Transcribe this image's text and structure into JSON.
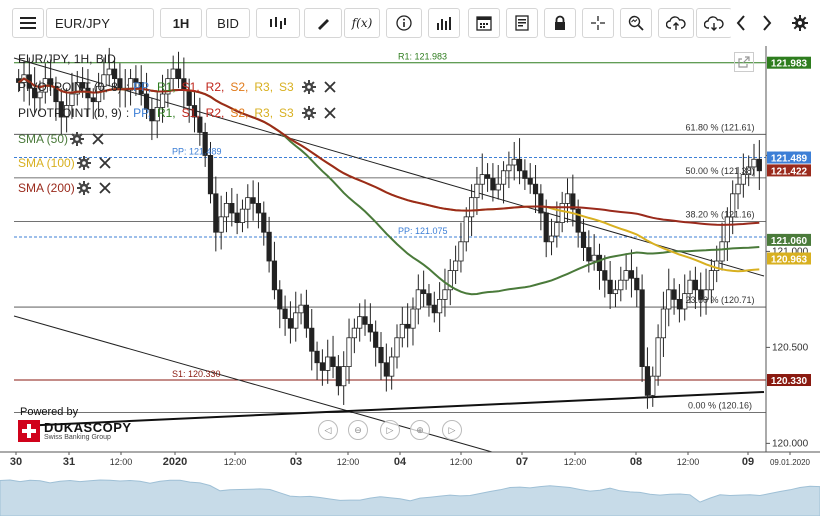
{
  "toolbar": {
    "menu_icon": "hamburger-icon",
    "symbol": "EUR/JPY",
    "timeframe": "1H",
    "price_type": "BID",
    "icons": [
      "candlestick-icon",
      "pencil-icon",
      "function-icon",
      "info-icon",
      "bar-chart-icon",
      "calendar-icon",
      "document-icon",
      "lock-icon",
      "crosshair-icon",
      "zoom-icon",
      "upload-cloud-icon",
      "download-cloud-icon",
      "chevron-left-icon",
      "chevron-right-icon",
      "gear-icon"
    ]
  },
  "chart_header": {
    "title": "EUR/JPY, 1H, BID"
  },
  "indicators": [
    {
      "label": "PIVOTPOINT (0, 8)",
      "levels": [
        "PP",
        "R1",
        "S1",
        "R2",
        "S2",
        "R3",
        "S3"
      ]
    },
    {
      "label": "PIVOTPOINT (0, 9)",
      "levels": [
        "PP",
        "R1",
        "S1",
        "R2",
        "S2",
        "R3",
        "S3"
      ]
    },
    {
      "label": "SMA (50)",
      "color": "#4a7a3a"
    },
    {
      "label": "SMA (100)",
      "color": "#d8b020"
    },
    {
      "label": "SMA (200)",
      "color": "#9a2a1c"
    }
  ],
  "level_colors": {
    "PP": "#3d7fd6",
    "R1": "#2e7d1e",
    "S1": "#c0251b",
    "R2": "#c0251b",
    "S2": "#e07a1a",
    "R3": "#d8b020",
    "S3": "#d8b020"
  },
  "branding": {
    "powered": "Powered by",
    "name": "DUKASCOPY",
    "sub": "Swiss Banking Group"
  },
  "nav_buttons": [
    "◁",
    "⊖",
    "▷",
    "⊕",
    "▷"
  ],
  "chart_data": {
    "type": "candlestick",
    "symbol": "EUR/JPY",
    "timeframe": "1H",
    "ylim": [
      119.955,
      122.07
    ],
    "y_tick_labels": [
      "121.000",
      "120.500",
      "120.000",
      "121.500"
    ],
    "x_tick_labels": [
      "30",
      "31",
      "12:00",
      "2020",
      "12:00",
      "03",
      "12:00",
      "04",
      "12:00",
      "07",
      "12:00",
      "08",
      "12:00",
      "09",
      "09.01.2020"
    ],
    "horizontal_levels": [
      {
        "label": "R1: 121.983",
        "value": 121.983,
        "color": "#2e7d1e"
      },
      {
        "label": "PP: 121.489",
        "value": 121.489,
        "color": "#3d7fd6"
      },
      {
        "label": "PP: 121.075",
        "value": 121.075,
        "color": "#3d7fd6"
      },
      {
        "label": "S1: 120.330",
        "value": 120.33,
        "color": "#8a1a10"
      }
    ],
    "fibonacci": [
      {
        "label": "61.80 % (121.61)",
        "value": 121.61
      },
      {
        "label": "50.00 % (121.38)",
        "value": 121.383
      },
      {
        "label": "38.20 % (121.16)",
        "value": 121.155
      },
      {
        "label": "23.60 % (120.71)",
        "value": 120.71
      },
      {
        "label": "0.00 % (120.16)",
        "value": 120.16
      }
    ],
    "price_labels": [
      {
        "text": "121.983",
        "value": 121.983,
        "color": "#2e7d1e"
      },
      {
        "text": "121.489",
        "value": 121.489,
        "color": "#3d7fd6"
      },
      {
        "text": "121.422",
        "value": 121.422,
        "color": "#9a2a1c"
      },
      {
        "text": "121.060",
        "value": 121.06,
        "color": "#4a7a3a"
      },
      {
        "text": "120.963",
        "value": 120.963,
        "color": "#d8b020"
      },
      {
        "text": "120.330",
        "value": 120.33,
        "color": "#8a1a10"
      }
    ],
    "candles_close": [
      121.88,
      121.92,
      121.85,
      121.8,
      121.83,
      121.9,
      121.86,
      121.78,
      121.7,
      121.76,
      121.82,
      121.88,
      121.85,
      121.8,
      121.78,
      121.86,
      121.92,
      121.95,
      121.9,
      121.85,
      121.84,
      121.9,
      121.88,
      121.82,
      121.74,
      121.68,
      121.75,
      121.82,
      121.9,
      121.95,
      121.9,
      121.84,
      121.76,
      121.7,
      121.62,
      121.5,
      121.3,
      121.1,
      121.18,
      121.25,
      121.2,
      121.15,
      121.22,
      121.28,
      121.25,
      121.2,
      121.1,
      120.95,
      120.8,
      120.7,
      120.65,
      120.6,
      120.68,
      120.72,
      120.6,
      120.48,
      120.42,
      120.38,
      120.45,
      120.4,
      120.3,
      120.4,
      120.55,
      120.6,
      120.66,
      120.62,
      120.58,
      120.5,
      120.42,
      120.35,
      120.45,
      120.55,
      120.62,
      120.6,
      120.7,
      120.8,
      120.78,
      120.72,
      120.68,
      120.75,
      120.8,
      120.9,
      120.95,
      121.05,
      121.18,
      121.28,
      121.35,
      121.4,
      121.38,
      121.32,
      121.35,
      121.42,
      121.45,
      121.48,
      121.42,
      121.38,
      121.35,
      121.3,
      121.2,
      121.05,
      121.08,
      121.15,
      121.25,
      121.3,
      121.22,
      121.1,
      121.02,
      120.95,
      120.98,
      120.9,
      120.85,
      120.78,
      120.8,
      120.85,
      120.9,
      120.86,
      120.8,
      120.4,
      120.25,
      120.35,
      120.55,
      120.7,
      120.8,
      120.75,
      120.7,
      120.78,
      120.85,
      120.8,
      120.75,
      120.8,
      120.9,
      120.95,
      121.05,
      121.18,
      121.3,
      121.35,
      121.4,
      121.44,
      121.48,
      121.42
    ]
  }
}
